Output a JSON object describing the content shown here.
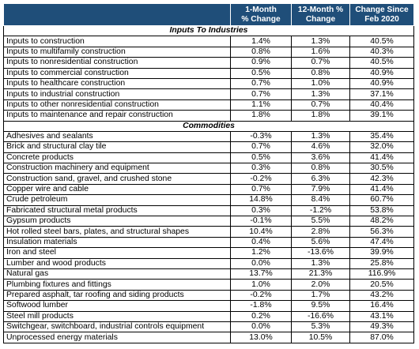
{
  "columns": {
    "col1": "1-Month\n% Change",
    "col2": "12-Month %\nChange",
    "col3": "Change Since\nFeb 2020"
  },
  "sections": [
    {
      "title": "Inputs To Industries",
      "rows": [
        {
          "name": "Inputs to construction",
          "m1": "1.4%",
          "m12": "1.3%",
          "feb": "40.5%"
        },
        {
          "name": "Inputs to multifamily construction",
          "m1": "0.8%",
          "m12": "1.6%",
          "feb": "40.3%"
        },
        {
          "name": "Inputs to nonresidential construction",
          "m1": "0.9%",
          "m12": "0.7%",
          "feb": "40.5%"
        },
        {
          "name": "Inputs to commercial construction",
          "m1": "0.5%",
          "m12": "0.8%",
          "feb": "40.9%"
        },
        {
          "name": "Inputs to healthcare construction",
          "m1": "0.7%",
          "m12": "1.0%",
          "feb": "40.9%"
        },
        {
          "name": "Inputs to industrial construction",
          "m1": "0.7%",
          "m12": "1.3%",
          "feb": "37.1%"
        },
        {
          "name": "Inputs to other nonresidential construction",
          "m1": "1.1%",
          "m12": "0.7%",
          "feb": "40.4%"
        },
        {
          "name": "Inputs to maintenance and repair construction",
          "m1": "1.8%",
          "m12": "1.8%",
          "feb": "39.1%"
        }
      ]
    },
    {
      "title": "Commodities",
      "rows": [
        {
          "name": "Adhesives and sealants",
          "m1": "-0.3%",
          "m12": "1.3%",
          "feb": "35.4%"
        },
        {
          "name": "Brick and structural clay tile",
          "m1": "0.7%",
          "m12": "4.6%",
          "feb": "32.0%"
        },
        {
          "name": "Concrete products",
          "m1": "0.5%",
          "m12": "3.6%",
          "feb": "41.4%"
        },
        {
          "name": "Construction machinery and equipment",
          "m1": "0.3%",
          "m12": "0.8%",
          "feb": "30.5%"
        },
        {
          "name": "Construction sand, gravel, and crushed stone",
          "m1": "-0.2%",
          "m12": "6.3%",
          "feb": "42.3%"
        },
        {
          "name": "Copper wire and cable",
          "m1": "0.7%",
          "m12": "7.9%",
          "feb": "41.4%"
        },
        {
          "name": "Crude petroleum",
          "m1": "14.8%",
          "m12": "8.4%",
          "feb": "60.7%"
        },
        {
          "name": "Fabricated structural metal products",
          "m1": "0.3%",
          "m12": "-1.2%",
          "feb": "53.8%"
        },
        {
          "name": "Gypsum products",
          "m1": "-0.1%",
          "m12": "5.5%",
          "feb": "48.2%"
        },
        {
          "name": "Hot rolled steel bars, plates, and structural shapes",
          "m1": "10.4%",
          "m12": "2.8%",
          "feb": "56.3%"
        },
        {
          "name": "Insulation materials",
          "m1": "0.4%",
          "m12": "5.6%",
          "feb": "47.4%"
        },
        {
          "name": "Iron and steel",
          "m1": "1.2%",
          "m12": "-13.6%",
          "feb": "39.9%"
        },
        {
          "name": "Lumber and wood products",
          "m1": "0.0%",
          "m12": "1.3%",
          "feb": "25.8%"
        },
        {
          "name": "Natural gas",
          "m1": "13.7%",
          "m12": "21.3%",
          "feb": "116.9%"
        },
        {
          "name": "Plumbing fixtures and fittings",
          "m1": "1.0%",
          "m12": "2.0%",
          "feb": "20.5%"
        },
        {
          "name": "Prepared asphalt, tar roofing and siding products",
          "m1": "-0.2%",
          "m12": "1.7%",
          "feb": "43.2%"
        },
        {
          "name": "Softwood lumber",
          "m1": "-1.8%",
          "m12": "9.5%",
          "feb": "16.4%"
        },
        {
          "name": "Steel mill products",
          "m1": "0.2%",
          "m12": "-16.6%",
          "feb": "43.1%"
        },
        {
          "name": "Switchgear, switchboard, industrial controls equipment",
          "m1": "0.0%",
          "m12": "5.3%",
          "feb": "49.3%"
        },
        {
          "name": "Unprocessed energy materials",
          "m1": "13.0%",
          "m12": "10.5%",
          "feb": "87.0%"
        }
      ]
    }
  ]
}
